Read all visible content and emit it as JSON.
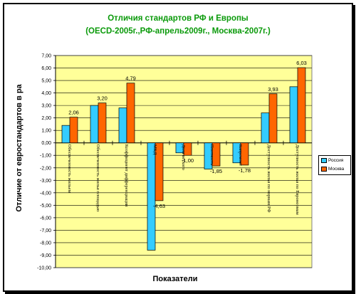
{
  "chart_data": {
    "type": "bar",
    "title": "Отличия стандартов РФ и Европы",
    "subtitle": "(OECD-2005г.,РФ-апрель2009г., Москва-2007г.)",
    "xlabel": "Показатели",
    "ylabel": "Отличие от евростандартов в ра",
    "ylim": [
      -10,
      7
    ],
    "yticks": [
      "7,00",
      "6,00",
      "5,00",
      "4,00",
      "3,00",
      "2,00",
      "1,00",
      "0,00",
      "-1,00",
      "-2,00",
      "-3,00",
      "-4,00",
      "-5,00",
      "-6,00",
      "-7,00",
      "-8,00",
      "-9,00",
      "-10,00"
    ],
    "categories": [
      "Обеспеченность жильем",
      "Обеспеченность жилья площадью",
      "Коэффициент дифференциации",
      "МКД",
      "Доля ветхого",
      "Плотность",
      "Капремонт",
      "Доступность жилья по нормам РФ",
      "Доступность жилья по Евронормам"
    ],
    "series": [
      {
        "name": "Россия",
        "color": "#33ccff",
        "values": [
          1.4,
          3.0,
          2.8,
          -8.6,
          -0.8,
          -2.1,
          -1.6,
          2.4,
          4.5
        ]
      },
      {
        "name": "Москва",
        "color": "#ff6600",
        "values": [
          2.06,
          3.2,
          4.79,
          -4.63,
          -1.0,
          -1.85,
          -1.78,
          3.93,
          6.03
        ]
      }
    ],
    "data_labels": [
      "2,06",
      "3,20",
      "4,79",
      "-4,63",
      "-1,00",
      "-1,85",
      "-1,78",
      "3,93",
      "6,03"
    ],
    "grid": true,
    "legend": "right",
    "plot_background": "#ffff99"
  }
}
